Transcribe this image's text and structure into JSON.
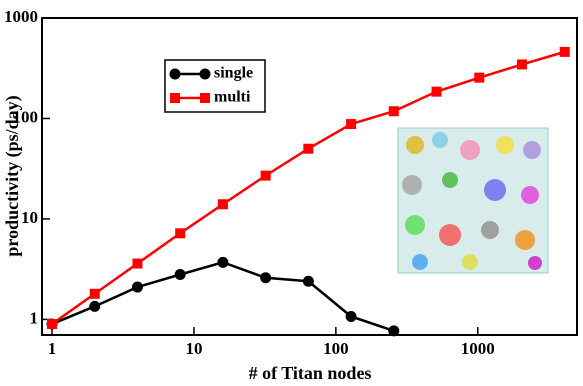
{
  "chart_data": {
    "type": "line",
    "x_label": "# of Titan nodes",
    "y_label": "productivity (ps/day)",
    "x": [
      1,
      2,
      4,
      8,
      16,
      32,
      64,
      128,
      256,
      512,
      1024,
      2048,
      4096
    ],
    "series": [
      {
        "name": "single",
        "color": "#000000",
        "marker": "circle",
        "values": [
          0.9,
          1.35,
          2.1,
          2.8,
          3.7,
          2.6,
          2.4,
          1.07,
          0.77,
          null,
          null,
          null,
          null
        ]
      },
      {
        "name": "multi",
        "color": "#ff0000",
        "marker": "square",
        "values": [
          0.9,
          1.8,
          3.6,
          7.2,
          14,
          27,
          50,
          88,
          118,
          185,
          255,
          345,
          460
        ]
      }
    ],
    "log_x": true,
    "log_y": true,
    "xlim": [
      0.85,
      5000
    ],
    "ylim": [
      0.7,
      1000
    ],
    "xticks": [
      1,
      10,
      100,
      1000
    ],
    "yticks": [
      1,
      10,
      100,
      1000
    ],
    "legend": "upper left"
  }
}
